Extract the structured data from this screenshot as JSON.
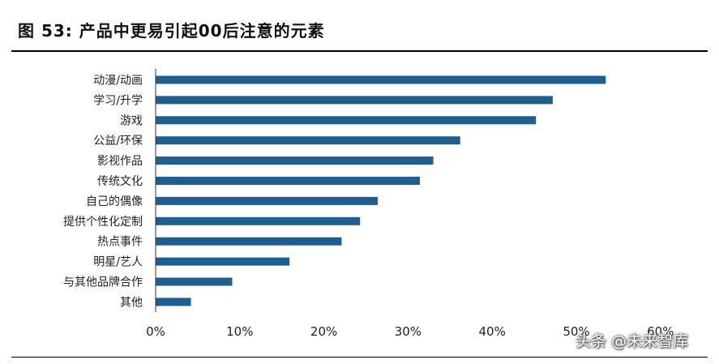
{
  "title": "图 53: 产品中更易引起00后注意的元素",
  "watermark": "头条 @未来智库",
  "chart_data": {
    "type": "bar",
    "orientation": "horizontal",
    "title": "图 53: 产品中更易引起00后注意的元素",
    "categories": [
      "动漫/动画",
      "学习/升学",
      "游戏",
      "公益/环保",
      "影视作品",
      "传统文化",
      "自己的偶像",
      "提供个性化定制",
      "热点事件",
      "明星/艺人",
      "与其他品牌合作",
      "其他"
    ],
    "values": [
      53.5,
      47.2,
      45.2,
      36.2,
      33.0,
      31.4,
      26.4,
      24.3,
      22.1,
      15.9,
      9.1,
      4.2
    ],
    "value_unit": "%",
    "xlim": [
      0,
      60
    ],
    "xticks": [
      0,
      10,
      20,
      30,
      40,
      50,
      60
    ],
    "xtick_labels": [
      "0%",
      "10%",
      "20%",
      "30%",
      "40%",
      "50%",
      "60%"
    ],
    "xlabel": "",
    "ylabel": "",
    "grid": false,
    "legend": "none",
    "bar_color": "#1f5f8f"
  }
}
